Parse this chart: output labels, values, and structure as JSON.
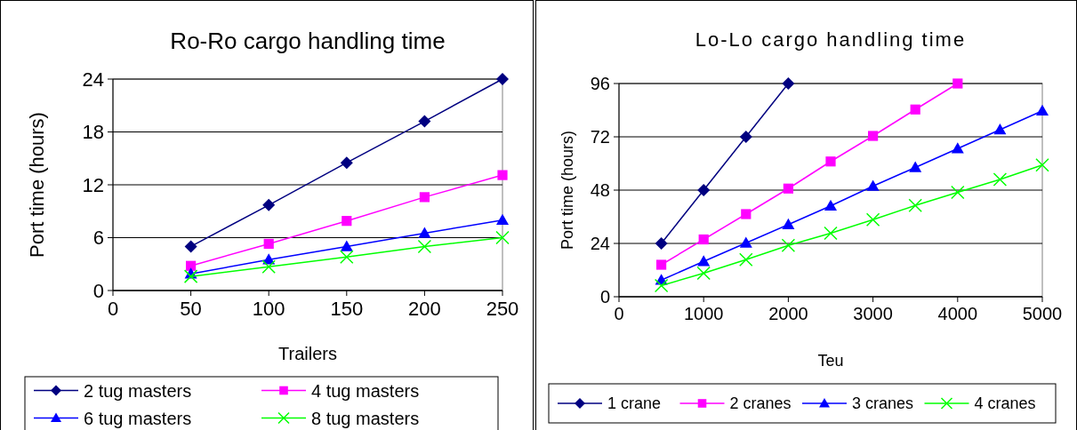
{
  "chart_data": [
    {
      "type": "line",
      "title": "Ro-Ro cargo handling time",
      "xlabel": "Trailers",
      "ylabel": "Port time (hours)",
      "x": [
        50,
        100,
        150,
        200,
        250
      ],
      "xlim": [
        0,
        250
      ],
      "xticks": [
        0,
        50,
        100,
        150,
        200,
        250
      ],
      "ylim": [
        0,
        24
      ],
      "yticks": [
        0,
        6,
        12,
        18,
        24
      ],
      "grid": "y",
      "legend": "bottom",
      "series": [
        {
          "name": "2 tug masters",
          "color": "#000080",
          "marker": "diamond",
          "values": [
            5.0,
            9.7,
            14.5,
            19.2,
            24
          ]
        },
        {
          "name": "4 tug masters",
          "color": "#ff00ff",
          "marker": "square",
          "values": [
            2.8,
            5.3,
            7.9,
            10.6,
            13.1
          ]
        },
        {
          "name": "6 tug masters",
          "color": "#0000ff",
          "marker": "triangle",
          "values": [
            1.9,
            3.5,
            5.0,
            6.5,
            8.0
          ]
        },
        {
          "name": "8 tug masters",
          "color": "#00ff00",
          "marker": "cross",
          "values": [
            1.6,
            2.7,
            3.8,
            5.0,
            6.0
          ]
        }
      ]
    },
    {
      "type": "line",
      "title": "Lo-Lo cargo handling time",
      "xlabel": "Teu",
      "ylabel": "Port time (hours)",
      "xlim": [
        0,
        5000
      ],
      "xticks": [
        0,
        1000,
        2000,
        3000,
        4000,
        5000
      ],
      "ylim": [
        0,
        96
      ],
      "yticks": [
        0,
        24,
        48,
        72,
        96
      ],
      "grid": "y",
      "legend": "bottom",
      "series": [
        {
          "name": "1 crane",
          "color": "#000080",
          "marker": "diamond",
          "x": [
            500,
            1000,
            1500,
            2000
          ],
          "values": [
            24,
            48,
            72,
            96
          ]
        },
        {
          "name": "2 cranes",
          "color": "#ff00ff",
          "marker": "square",
          "x": [
            500,
            1000,
            1500,
            2000,
            2500,
            3000,
            3500,
            4000
          ],
          "values": [
            14.4,
            25.8,
            37.2,
            48.7,
            60.9,
            72.4,
            84.3,
            96
          ]
        },
        {
          "name": "3 cranes",
          "color": "#0000ff",
          "marker": "triangle",
          "x": [
            500,
            1000,
            1500,
            2000,
            2500,
            3000,
            3500,
            4000,
            4500,
            5000
          ],
          "values": [
            7.5,
            15.9,
            24.2,
            32.5,
            40.9,
            49.8,
            58.2,
            66.7,
            75.2,
            83.7
          ]
        },
        {
          "name": "4 cranes",
          "color": "#00ff00",
          "marker": "cross",
          "x": [
            500,
            1000,
            1500,
            2000,
            2500,
            3000,
            3500,
            4000,
            4500,
            5000
          ],
          "values": [
            5.0,
            10.6,
            16.7,
            23.1,
            28.6,
            34.7,
            41.1,
            47.0,
            52.8,
            59.3
          ]
        }
      ]
    }
  ]
}
